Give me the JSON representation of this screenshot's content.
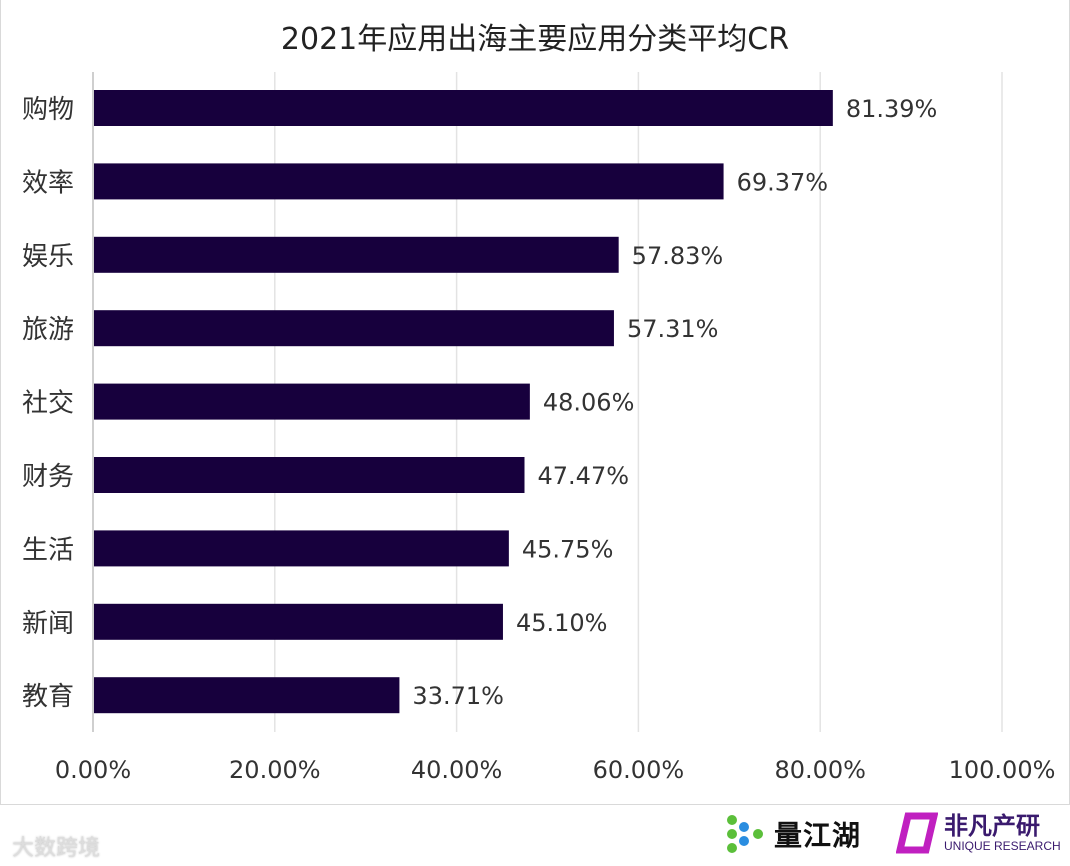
{
  "chart_data": {
    "type": "bar",
    "orientation": "horizontal",
    "title": "2021年应用出海主要应用分类平均CR",
    "categories": [
      "购物",
      "效率",
      "娱乐",
      "旅游",
      "社交",
      "财务",
      "生活",
      "新闻",
      "教育"
    ],
    "values": [
      81.39,
      69.37,
      57.83,
      57.31,
      48.06,
      47.47,
      45.75,
      45.1,
      33.71
    ],
    "data_labels": [
      "81.39%",
      "69.37%",
      "57.83%",
      "57.31%",
      "48.06%",
      "47.47%",
      "45.75%",
      "45.10%",
      "33.71%"
    ],
    "xlim": [
      0,
      100
    ],
    "x_ticks": [
      0,
      20,
      40,
      60,
      80,
      100
    ],
    "x_tick_labels": [
      "0.00%",
      "20.00%",
      "40.00%",
      "60.00%",
      "80.00%",
      "100.00%"
    ],
    "grid": "vertical",
    "bar_color": "#17003d"
  },
  "watermark": "大数跨境",
  "logos": {
    "liangjianghu": "量江湖",
    "feifan_cn": "非凡产研",
    "feifan_en": "UNIQUE RESEARCH",
    "green": "#5bbf3a",
    "blue": "#2a8de0",
    "magenta": "#c020c0"
  }
}
